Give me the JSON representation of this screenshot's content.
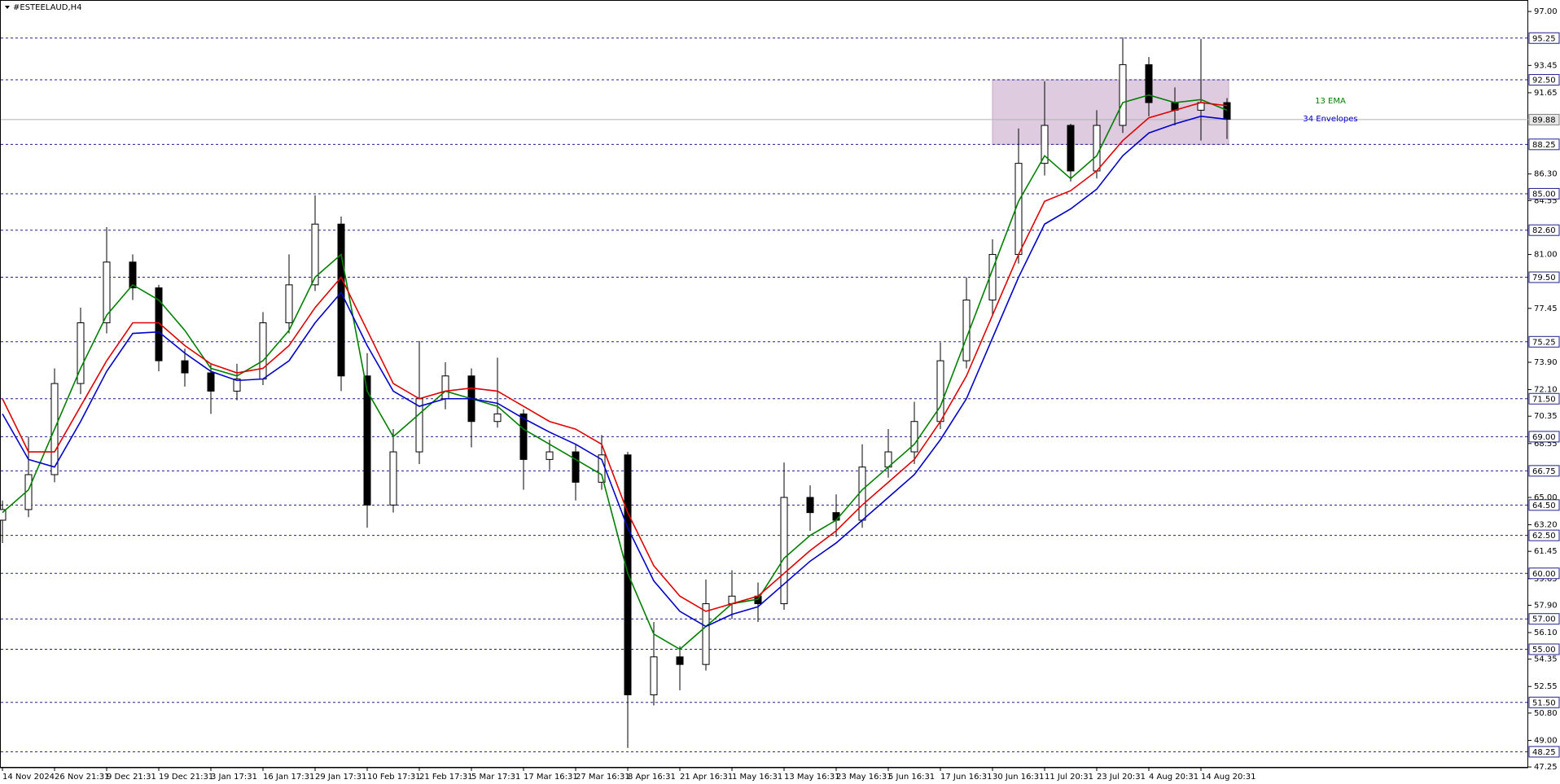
{
  "chart_data": {
    "type": "candlestick",
    "title": "#ESTEELAUD,H4",
    "categories": [
      "14 Nov 2024",
      null,
      "26 Nov 21:31",
      null,
      "9 Dec 21:31",
      null,
      "19 Dec 21:31",
      null,
      "3 Jan 17:31",
      null,
      "16 Jan 17:31",
      null,
      "29 Jan 17:31",
      null,
      "10 Feb 17:31",
      null,
      "21 Feb 17:31",
      null,
      "5 Mar 17:31",
      null,
      "17 Mar 16:31",
      null,
      "27 Mar 16:31",
      null,
      "8 Apr 16:31",
      null,
      "21 Apr 16:31",
      null,
      "1 May 16:31",
      null,
      "13 May 16:31",
      null,
      "23 May 16:31",
      null,
      "5 Jun 16:31",
      null,
      "17 Jun 16:31",
      null,
      "30 Jun 16:31",
      null,
      "11 Jul 20:31",
      null,
      "23 Jul 20:31",
      null,
      "4 Aug 20:31",
      null,
      "14 Aug 20:31",
      null
    ],
    "candles": {
      "open": [
        63.5,
        64.2,
        66.5,
        72.5,
        76.5,
        80.5,
        78.8,
        74.0,
        73.2,
        72.0,
        72.8,
        76.5,
        79.0,
        83.0,
        73.0,
        64.5,
        68.0,
        71.5,
        73.0,
        70.0,
        70.5,
        67.5,
        68.0,
        66.0,
        67.8,
        52.0,
        54.5,
        54.0,
        58.0,
        58.5,
        58.0,
        65.0,
        64.0,
        63.5,
        67.0,
        68.0,
        70.0,
        74.0,
        78.0,
        81.0,
        87.0,
        89.5,
        86.5,
        89.5,
        93.5,
        91.0,
        90.5,
        91.0
      ],
      "high": [
        64.8,
        69.0,
        73.5,
        77.5,
        82.8,
        81.0,
        79.0,
        74.8,
        73.8,
        73.8,
        77.2,
        81.0,
        84.9,
        83.5,
        74.5,
        69.5,
        75.3,
        73.9,
        73.5,
        74.2,
        70.8,
        68.8,
        68.5,
        69.1,
        68.0,
        56.8,
        55.2,
        59.6,
        60.2,
        59.4,
        67.3,
        65.8,
        65.2,
        68.5,
        69.5,
        71.3,
        75.2,
        79.5,
        82.0,
        89.3,
        92.4,
        89.6,
        90.5,
        95.3,
        94.0,
        92.0,
        95.2,
        91.3
      ],
      "low": [
        62.0,
        63.7,
        66.0,
        71.8,
        75.8,
        78.0,
        73.3,
        72.3,
        70.5,
        71.4,
        72.4,
        75.8,
        78.6,
        72.0,
        63.0,
        64.0,
        67.2,
        70.8,
        68.3,
        69.6,
        65.5,
        66.8,
        64.8,
        65.5,
        48.5,
        51.3,
        52.3,
        53.6,
        57.0,
        56.8,
        57.6,
        62.8,
        62.4,
        63.0,
        66.3,
        67.2,
        69.5,
        73.5,
        77.0,
        80.4,
        86.2,
        85.8,
        86.0,
        89.0,
        90.1,
        89.5,
        88.5,
        88.6
      ],
      "close": [
        64.2,
        66.5,
        72.5,
        76.5,
        80.5,
        78.8,
        74.0,
        73.2,
        72.0,
        72.8,
        76.5,
        79.0,
        83.0,
        73.0,
        64.5,
        68.0,
        71.5,
        73.0,
        70.0,
        70.5,
        67.5,
        68.0,
        66.0,
        67.8,
        52.0,
        54.5,
        54.0,
        58.0,
        58.5,
        58.0,
        65.0,
        64.0,
        63.5,
        67.0,
        68.0,
        70.0,
        74.0,
        78.0,
        81.0,
        87.0,
        89.5,
        86.5,
        89.5,
        93.5,
        91.0,
        90.5,
        91.0,
        89.9
      ]
    },
    "ema": {
      "name": "13 EMA",
      "color": "#008000",
      "values": [
        64.0,
        65.5,
        69.5,
        73.5,
        77.0,
        79.0,
        78.0,
        76.0,
        73.5,
        73.0,
        74.0,
        76.0,
        79.5,
        81.0,
        72.0,
        69.0,
        70.5,
        72.0,
        71.5,
        71.0,
        69.5,
        68.5,
        67.5,
        66.5,
        60.0,
        56.0,
        55.0,
        56.5,
        58.0,
        58.3,
        61.0,
        62.5,
        63.5,
        65.5,
        67.0,
        68.5,
        71.0,
        75.5,
        80.0,
        84.5,
        87.5,
        86.0,
        87.5,
        91.0,
        91.5,
        91.0,
        91.2,
        90.5
      ]
    },
    "envelopes": {
      "name": "34 Envelopes",
      "color": "#0000c8",
      "upper": {
        "color": "#e00000",
        "values": [
          71.5,
          68.0,
          68.0,
          71.0,
          74.0,
          76.5,
          76.5,
          75.0,
          73.8,
          73.2,
          73.5,
          75.0,
          77.5,
          79.5,
          76.0,
          72.5,
          71.5,
          72.0,
          72.2,
          72.0,
          71.0,
          70.0,
          69.5,
          68.5,
          64.0,
          60.5,
          58.5,
          57.5,
          58.0,
          58.5,
          60.0,
          61.5,
          62.8,
          64.5,
          66.0,
          67.5,
          70.0,
          73.0,
          77.0,
          81.0,
          84.5,
          85.2,
          86.5,
          88.5,
          90.0,
          90.5,
          91.0,
          90.8
        ]
      },
      "lower": {
        "color": "#0000c8",
        "values": [
          70.5,
          67.5,
          67.0,
          70.0,
          73.3,
          75.8,
          75.9,
          74.5,
          73.3,
          72.7,
          72.8,
          74.0,
          76.5,
          78.5,
          75.0,
          72.0,
          71.0,
          71.5,
          71.5,
          71.2,
          70.2,
          69.3,
          68.5,
          67.5,
          63.0,
          59.5,
          57.5,
          56.5,
          57.3,
          57.8,
          59.3,
          60.8,
          62.0,
          63.5,
          65.0,
          66.5,
          68.8,
          71.5,
          75.5,
          79.5,
          83.0,
          84.0,
          85.3,
          87.5,
          89.0,
          89.6,
          90.1,
          89.9
        ]
      }
    },
    "zone": {
      "low": 88.25,
      "high": 92.5,
      "start": 38,
      "end": 47,
      "color": "#d8bfd8"
    },
    "levels": [
      {
        "value": 95.25,
        "label": "95.25"
      },
      {
        "value": 92.5,
        "label": "92.50"
      },
      {
        "value": 88.25,
        "label": "88.25"
      },
      {
        "value": 85,
        "label": "85.00"
      },
      {
        "value": 82.6,
        "label": "82.60"
      },
      {
        "value": 79.5,
        "label": "79.50"
      },
      {
        "value": 75.25,
        "label": "75.25"
      },
      {
        "value": 71.5,
        "label": "71.50"
      },
      {
        "value": 69,
        "label": "69.00"
      },
      {
        "value": 66.75,
        "label": "66.75"
      },
      {
        "value": 64.5,
        "label": "64.50"
      },
      {
        "value": 62.5,
        "label": "62.50"
      },
      {
        "value": 60,
        "label": "60.00"
      },
      {
        "value": 57,
        "label": "57.00"
      },
      {
        "value": 55,
        "label": "55.00"
      },
      {
        "value": 51.5,
        "label": "51.50"
      },
      {
        "value": 48.25,
        "label": "48.25"
      }
    ],
    "current_price": {
      "value": 89.88,
      "label": "89.88"
    },
    "ylim": [
      47.2,
      97.65
    ],
    "yticks": [
      {
        "value": 97,
        "label": "97.00"
      },
      {
        "value": 93.45,
        "label": "93.45"
      },
      {
        "value": 91.65,
        "label": "91.65"
      },
      {
        "value": 86.3,
        "label": "86.30"
      },
      {
        "value": 84.55,
        "label": "84.55"
      },
      {
        "value": 81,
        "label": "81.00"
      },
      {
        "value": 77.45,
        "label": "77.45"
      },
      {
        "value": 73.9,
        "label": "73.90"
      },
      {
        "value": 72.1,
        "label": "72.10"
      },
      {
        "value": 70.35,
        "label": "70.35"
      },
      {
        "value": 68.55,
        "label": "68.55"
      },
      {
        "value": 65,
        "label": "65.00"
      },
      {
        "value": 63.2,
        "label": "63.20"
      },
      {
        "value": 61.45,
        "label": "61.45"
      },
      {
        "value": 59.65,
        "label": "59.65"
      },
      {
        "value": 57.9,
        "label": "57.90"
      },
      {
        "value": 56.1,
        "label": "56.10"
      },
      {
        "value": 54.35,
        "label": "54.35"
      },
      {
        "value": 52.55,
        "label": "52.55"
      },
      {
        "value": 50.8,
        "label": "50.80"
      },
      {
        "value": 49,
        "label": "49.00"
      },
      {
        "value": 47.25,
        "label": "47.25"
      }
    ]
  }
}
